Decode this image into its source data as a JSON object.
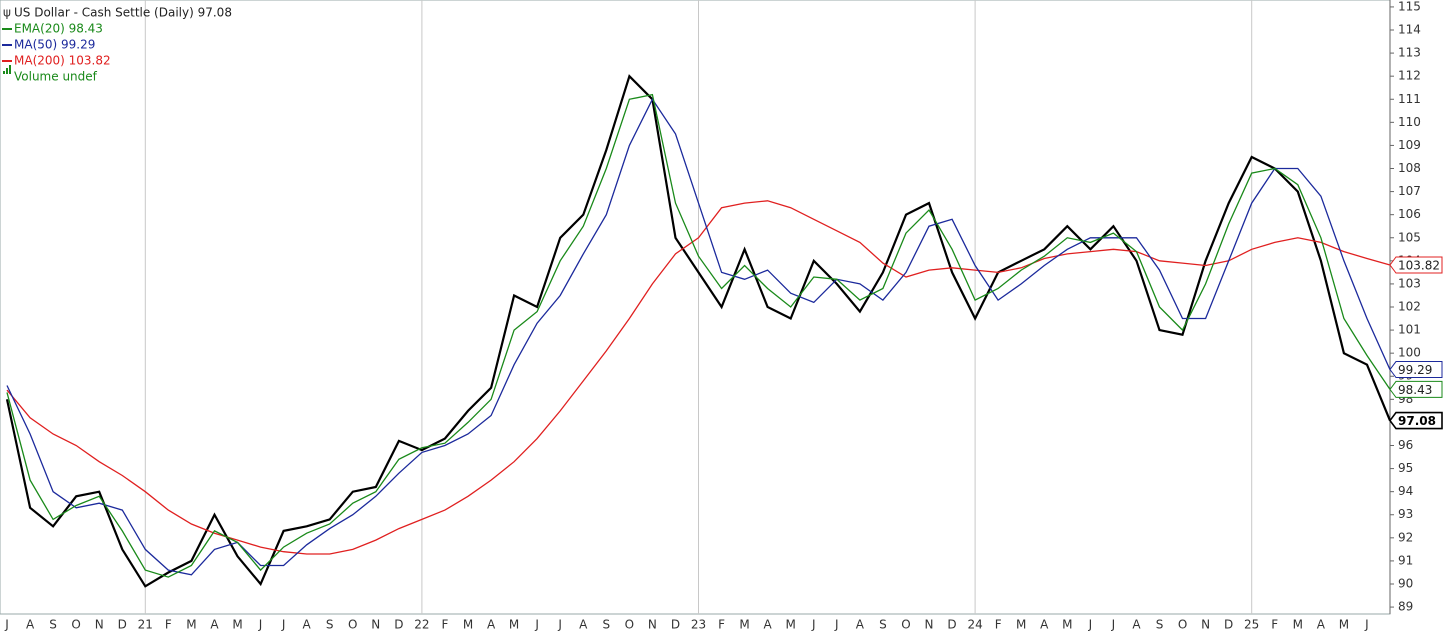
{
  "chart_data": {
    "type": "line",
    "categories": [
      "J",
      "A",
      "S",
      "O",
      "N",
      "D",
      "21",
      "F",
      "M",
      "A",
      "M",
      "J",
      "J",
      "A",
      "S",
      "O",
      "N",
      "D",
      "22",
      "F",
      "M",
      "A",
      "M",
      "J",
      "J",
      "A",
      "S",
      "O",
      "N",
      "D",
      "23",
      "F",
      "M",
      "A",
      "M",
      "J",
      "J",
      "A",
      "S",
      "O",
      "N",
      "D",
      "24",
      "F",
      "M",
      "A",
      "M",
      "J",
      "J",
      "A",
      "S",
      "O",
      "N",
      "D",
      "25",
      "F",
      "M",
      "A",
      "M",
      "J",
      null
    ],
    "series": [
      {
        "name": "US Dollar - Cash Settle (Daily) 97.08",
        "color": "#000000",
        "values": [
          98,
          93.3,
          92.5,
          93.8,
          94,
          91.5,
          89.9,
          90.5,
          91,
          93,
          91.2,
          90,
          92.3,
          92.5,
          92.8,
          94,
          94.2,
          96.2,
          95.8,
          96.3,
          97.5,
          98.5,
          102.5,
          102,
          105,
          106,
          108.8,
          112,
          111,
          105,
          103.5,
          102,
          104.5,
          102,
          101.5,
          104,
          103,
          101.8,
          103.5,
          106,
          106.5,
          103.5,
          101.5,
          103.5,
          104,
          104.5,
          105.5,
          104.5,
          105.5,
          104,
          101,
          100.8,
          104,
          106.5,
          108.5,
          108,
          107,
          104,
          100,
          99.5,
          97.08
        ]
      },
      {
        "name": "EMA(20) 98.43",
        "color": "#1a8a1a",
        "values": [
          98.3,
          94.5,
          92.8,
          93.4,
          93.8,
          92.3,
          90.6,
          90.3,
          90.8,
          92.3,
          91.8,
          90.6,
          91.6,
          92.2,
          92.6,
          93.5,
          94,
          95.4,
          95.9,
          96.1,
          97,
          98,
          101,
          101.8,
          104,
          105.5,
          108,
          111,
          111.2,
          106.5,
          104.2,
          102.8,
          103.8,
          102.8,
          102,
          103.3,
          103.2,
          102.3,
          102.8,
          105.2,
          106.2,
          104.5,
          102.3,
          102.8,
          103.6,
          104.2,
          105,
          104.8,
          105.2,
          104.4,
          102,
          101,
          103,
          105.6,
          107.8,
          108,
          107.3,
          105,
          101.5,
          99.9,
          98.43
        ]
      },
      {
        "name": "MA(50) 99.29",
        "color": "#1c2a9c",
        "values": [
          98.6,
          96.5,
          94,
          93.3,
          93.5,
          93.2,
          91.5,
          90.6,
          90.4,
          91.5,
          91.8,
          90.8,
          90.8,
          91.7,
          92.4,
          93,
          93.8,
          94.8,
          95.7,
          96,
          96.5,
          97.3,
          99.5,
          101.3,
          102.5,
          104.3,
          106,
          109,
          111,
          109.5,
          106.5,
          103.5,
          103.2,
          103.6,
          102.6,
          102.2,
          103.2,
          103,
          102.3,
          103.5,
          105.5,
          105.8,
          103.8,
          102.3,
          103,
          103.8,
          104.5,
          105,
          105,
          105,
          103.6,
          101.5,
          101.5,
          104,
          106.5,
          108,
          108,
          106.8,
          104,
          101.5,
          99.29
        ]
      },
      {
        "name": "MA(200) 103.82",
        "color": "#e02020",
        "values": [
          98.4,
          97.2,
          96.5,
          96,
          95.3,
          94.7,
          94,
          93.2,
          92.6,
          92.2,
          91.9,
          91.6,
          91.4,
          91.3,
          91.3,
          91.5,
          91.9,
          92.4,
          92.8,
          93.2,
          93.8,
          94.5,
          95.3,
          96.3,
          97.5,
          98.8,
          100.1,
          101.5,
          103,
          104.3,
          105,
          106.3,
          106.5,
          106.6,
          106.3,
          105.8,
          105.3,
          104.8,
          103.9,
          103.3,
          103.6,
          103.7,
          103.6,
          103.5,
          103.7,
          104.1,
          104.3,
          104.4,
          104.5,
          104.4,
          104,
          103.9,
          103.8,
          104,
          104.5,
          104.8,
          105,
          104.8,
          104.4,
          104.1,
          103.82
        ]
      }
    ],
    "volume_label": "Volume undef",
    "ylim": [
      88.7,
      115.3
    ],
    "yticks": [
      89,
      90,
      91,
      92,
      93,
      94,
      95,
      96,
      97,
      98,
      99,
      100,
      101,
      102,
      103,
      104,
      105,
      106,
      107,
      108,
      109,
      110,
      111,
      112,
      113,
      114,
      115
    ]
  }
}
